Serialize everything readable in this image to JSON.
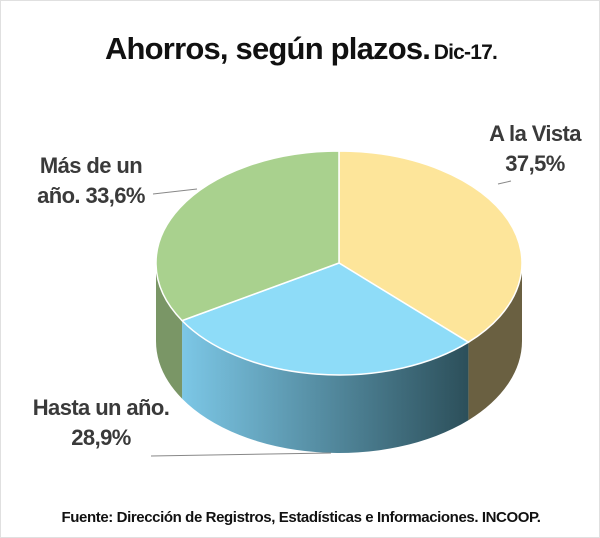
{
  "chart_data": {
    "type": "pie",
    "title": "Ahorros, según plazos.",
    "subtitle": "Dic-17.",
    "categories": [
      "A la Vista",
      "Hasta un año.",
      "Más de un año."
    ],
    "values": [
      37.5,
      28.9,
      33.6
    ],
    "value_labels": [
      "37,5%",
      "28,9%",
      "33,6%"
    ],
    "colors": [
      "#fde59a",
      "#8edcf8",
      "#a9d18e"
    ],
    "source": "Fuente: Dirección de Registros, Estadísticas e Informaciones. INCOOP."
  }
}
